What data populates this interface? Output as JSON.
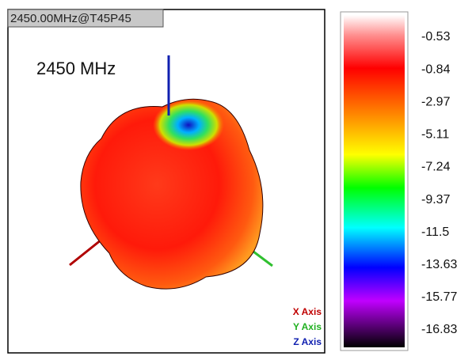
{
  "plot": {
    "window_label": "2450.00MHz@T45P45",
    "annotation": "2450 MHz",
    "axis_legend": [
      "X Axis",
      "Y Axis",
      "Z Axis"
    ]
  },
  "colorbar": {
    "labels": [
      -0.53,
      -0.84,
      -2.97,
      -5.11,
      -7.24,
      -9.37,
      -11.5,
      -13.63,
      -15.77,
      -16.83
    ]
  }
}
